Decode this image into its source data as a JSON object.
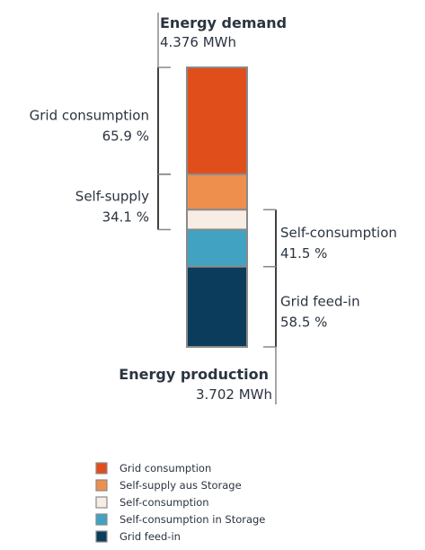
{
  "chart_data": {
    "type": "bar",
    "stack_order": "top-to-bottom",
    "segments": [
      {
        "name": "Grid consumption",
        "value": 2.884,
        "color": "#e04e1b"
      },
      {
        "name": "Self-supply aus Storage",
        "value": 0.955,
        "color": "#ef8f4d"
      },
      {
        "name": "Self-consumption",
        "value": 0.537,
        "color": "#f7ede4"
      },
      {
        "name": "Self-consumption in Storage",
        "value": 1.0,
        "color": "#42a2c2"
      },
      {
        "name": "Grid feed-in",
        "value": 2.165,
        "color": "#0c3c5c"
      }
    ],
    "demand": {
      "title": "Energy demand",
      "value": "4.376 MWh"
    },
    "production": {
      "title": "Energy production",
      "value": "3.702 MWh"
    },
    "brackets": [
      {
        "side": "left",
        "label": "Grid consumption",
        "value": "65.9 %",
        "from_segment": 0,
        "to_segment": 0
      },
      {
        "side": "left",
        "label": "Self-supply",
        "value": "34.1 %",
        "from_segment": 1,
        "to_segment": 2
      },
      {
        "side": "right",
        "label": "Self-consumption",
        "value": "41.5 %",
        "from_segment": 2,
        "to_segment": 3
      },
      {
        "side": "right",
        "label": "Grid feed-in",
        "value": "58.5 %",
        "from_segment": 4,
        "to_segment": 4
      }
    ],
    "legend": {
      "position": "bottom-center",
      "items": [
        {
          "label": "Grid consumption",
          "color": "#e04e1b"
        },
        {
          "label": "Self-supply aus Storage",
          "color": "#ef8f4d"
        },
        {
          "label": "Self-consumption",
          "color": "#f7ede4"
        },
        {
          "label": "Self-consumption in Storage",
          "color": "#42a2c2"
        },
        {
          "label": "Grid feed-in",
          "color": "#0c3c5c"
        }
      ]
    },
    "text_color": "#2b3440",
    "line_color": "#888888"
  }
}
